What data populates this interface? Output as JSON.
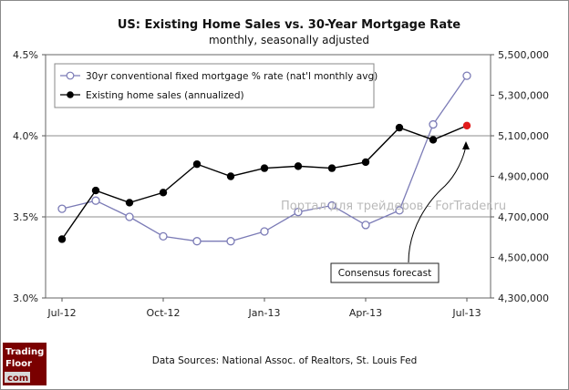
{
  "chart_data": {
    "type": "line",
    "title": "US: Existing Home Sales vs. 30-Year Mortgage Rate",
    "subtitle": "monthly, seasonally adjusted",
    "x": [
      "Jul-12",
      "Aug-12",
      "Sep-12",
      "Oct-12",
      "Nov-12",
      "Dec-12",
      "Jan-13",
      "Feb-13",
      "Mar-13",
      "Apr-13",
      "May-13",
      "Jun-13",
      "Jul-13"
    ],
    "x_tick_labels": [
      "Jul-12",
      "Oct-12",
      "Jan-13",
      "Apr-13",
      "Jul-13"
    ],
    "y_left": {
      "range": [
        3.0,
        4.5
      ],
      "ticks": [
        3.0,
        3.5,
        4.0,
        4.5
      ],
      "tick_labels": [
        "3.0%",
        "3.5%",
        "4.0%",
        "4.5%"
      ]
    },
    "y_right": {
      "range": [
        4300000,
        5500000
      ],
      "ticks": [
        4300000,
        4500000,
        4700000,
        4900000,
        5100000,
        5300000,
        5500000
      ],
      "tick_labels": [
        "4,300,000",
        "4,500,000",
        "4,700,000",
        "4,900,000",
        "5,100,000",
        "5,300,000",
        "5,500,000"
      ]
    },
    "grid": "horizontal",
    "legend_position": "top-left",
    "series": [
      {
        "name": "30yr conventional fixed mortgage % rate (nat'l monthly avg)",
        "axis": "left",
        "marker": "open-circle",
        "color": "#7b7bb6",
        "values": [
          3.55,
          3.6,
          3.5,
          3.38,
          3.35,
          3.35,
          3.41,
          3.53,
          3.57,
          3.45,
          3.54,
          4.07,
          4.37
        ]
      },
      {
        "name": "Existing home sales (annualized)",
        "axis": "right",
        "marker": "filled-circle",
        "color": "#000000",
        "forecast_color": "#e21b1b",
        "forecast_index": 12,
        "values": [
          4590000,
          4830000,
          4770000,
          4820000,
          4960000,
          4900000,
          4940000,
          4950000,
          4940000,
          4970000,
          5140000,
          5080000,
          5150000
        ]
      }
    ],
    "annotations": [
      "Consensus forecast"
    ]
  },
  "source_text": "Data Sources: National Assoc. of Realtors, St. Louis Fed",
  "watermark_text": "Портал для трейдеров - ForTrader.ru",
  "logo": {
    "line1": "Trading",
    "line2": "Floor",
    "line3": "com"
  }
}
